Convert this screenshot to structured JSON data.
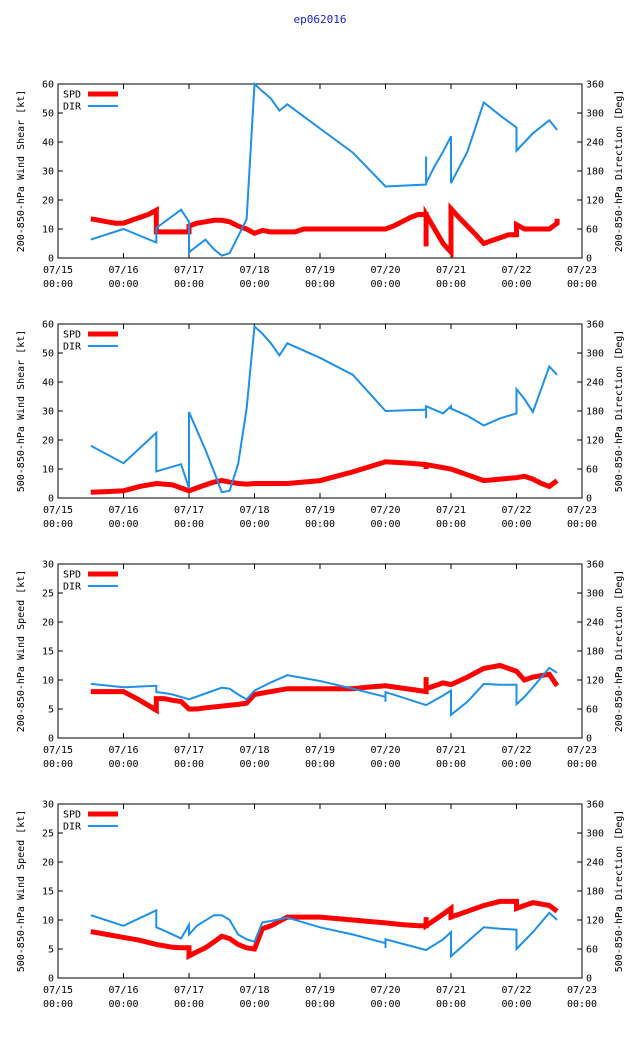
{
  "figure_title": "ep062016",
  "x_tick_labels": [
    {
      "date": "07/15",
      "time": "00:00"
    },
    {
      "date": "07/16",
      "time": "00:00"
    },
    {
      "date": "07/17",
      "time": "00:00"
    },
    {
      "date": "07/18",
      "time": "00:00"
    },
    {
      "date": "07/19",
      "time": "00:00"
    },
    {
      "date": "07/20",
      "time": "00:00"
    },
    {
      "date": "07/21",
      "time": "00:00"
    },
    {
      "date": "07/22",
      "time": "00:00"
    },
    {
      "date": "07/23",
      "time": "00:00"
    }
  ],
  "colors": {
    "spd": "#ff0000",
    "dir": "#1e90e8",
    "title": "#2020c8"
  },
  "chart_data": [
    {
      "type": "line",
      "ylabel": "200-850-hPa Wind Shear [kt]",
      "y2label": "200-850-hPa Direction [Deg]",
      "xlim": [
        0,
        8
      ],
      "ylim": [
        0,
        60
      ],
      "y2lim": [
        0,
        360
      ],
      "yticks": [
        "0",
        "10",
        "20",
        "30",
        "40",
        "50",
        "60"
      ],
      "y2ticks": [
        "0",
        "60",
        "120",
        "180",
        "240",
        "300",
        "360"
      ],
      "legend": [
        "SPD",
        "DIR"
      ],
      "series": [
        {
          "name": "SPD",
          "axis": "left",
          "x": [
            0.5,
            0.63,
            0.75,
            0.88,
            1.0,
            1.12,
            1.25,
            1.38,
            1.5,
            1.5,
            1.62,
            1.75,
            1.88,
            2.0,
            2.0,
            2.12,
            2.25,
            2.38,
            2.5,
            2.62,
            2.75,
            2.88,
            3.0,
            3.12,
            3.25,
            3.38,
            3.5,
            3.62,
            3.75,
            3.88,
            4.0,
            4.5,
            5.0,
            5.12,
            5.25,
            5.38,
            5.5,
            5.62,
            5.62,
            5.62,
            5.75,
            5.88,
            6.0,
            6.0,
            6.12,
            6.25,
            6.38,
            6.5,
            6.62,
            6.75,
            6.88,
            7.0,
            7.0,
            7.12,
            7.25,
            7.38,
            7.5,
            7.62,
            7.62
          ],
          "y": [
            13.5,
            13,
            12.5,
            12,
            12,
            13,
            14,
            15,
            16.5,
            9,
            9,
            9,
            9,
            9,
            11,
            12,
            12.5,
            13,
            13,
            12.5,
            11,
            10,
            8.5,
            9.5,
            9,
            9,
            9,
            9,
            10,
            10,
            10,
            10,
            10,
            11,
            12.5,
            14,
            15,
            15,
            4,
            15,
            10,
            5,
            2,
            17,
            14,
            11,
            8,
            5,
            6,
            7,
            8,
            8,
            11.5,
            10,
            10,
            10,
            10,
            12,
            13.5
          ]
        },
        {
          "name": "DIR",
          "axis": "right",
          "x": [
            0.5,
            1.0,
            1.5,
            1.5,
            1.88,
            2.0,
            2.0,
            2.0,
            2.25,
            2.38,
            2.5,
            2.62,
            2.75,
            2.88,
            3.0,
            3.12,
            3.25,
            3.38,
            3.5,
            4.0,
            4.5,
            5.0,
            5.62,
            5.62,
            5.62,
            5.75,
            5.88,
            6.0,
            6.0,
            6.25,
            6.5,
            6.75,
            7.0,
            7.0,
            7.25,
            7.5,
            7.62
          ],
          "y": [
            38,
            60,
            32,
            62,
            100,
            75,
            75,
            12,
            38,
            18,
            5,
            10,
            45,
            80,
            360,
            345,
            330,
            305,
            318,
            268,
            218,
            148,
            152,
            210,
            155,
            190,
            220,
            252,
            155,
            220,
            322,
            295,
            270,
            222,
            258,
            285,
            265
          ]
        }
      ]
    },
    {
      "type": "line",
      "ylabel": "500-850-hPa Wind Shear [kt]",
      "y2label": "500-850-hPa Direction [Deg]",
      "xlim": [
        0,
        8
      ],
      "ylim": [
        0,
        60
      ],
      "y2lim": [
        0,
        360
      ],
      "yticks": [
        "0",
        "10",
        "20",
        "30",
        "40",
        "50",
        "60"
      ],
      "y2ticks": [
        "0",
        "60",
        "120",
        "180",
        "240",
        "300",
        "360"
      ],
      "legend": [
        "SPD",
        "DIR"
      ],
      "series": [
        {
          "name": "SPD",
          "axis": "left",
          "x": [
            0.5,
            0.75,
            1.0,
            1.25,
            1.5,
            1.75,
            2.0,
            2.12,
            2.25,
            2.38,
            2.5,
            2.62,
            2.75,
            2.88,
            3.0,
            3.5,
            4.0,
            4.5,
            5.0,
            5.12,
            5.38,
            5.62,
            5.62,
            5.62,
            6.0,
            6.25,
            6.5,
            6.75,
            7.0,
            7.12,
            7.25,
            7.38,
            7.5,
            7.62
          ],
          "y": [
            2,
            2.2,
            2.5,
            4,
            5,
            4.5,
            2.5,
            3.5,
            4.5,
            5.5,
            6,
            5.5,
            5,
            4.8,
            5,
            5,
            6,
            9,
            12.5,
            12.3,
            12,
            11.5,
            10,
            11.5,
            10,
            8,
            6,
            6.5,
            7,
            7.5,
            6.5,
            5,
            4,
            6
          ]
        },
        {
          "name": "DIR",
          "axis": "right",
          "x": [
            0.5,
            1.0,
            1.5,
            1.5,
            1.88,
            2.0,
            2.0,
            2.12,
            2.25,
            2.38,
            2.5,
            2.62,
            2.75,
            2.88,
            3.0,
            3.12,
            3.25,
            3.38,
            3.5,
            4.0,
            4.5,
            5.0,
            5.62,
            5.62,
            5.62,
            5.88,
            6.0,
            6.0,
            6.25,
            6.5,
            6.75,
            7.0,
            7.0,
            7.12,
            7.25,
            7.5,
            7.62
          ],
          "y": [
            108,
            72,
            135,
            55,
            70,
            20,
            178,
            140,
            100,
            55,
            12,
            15,
            70,
            185,
            355,
            340,
            320,
            295,
            320,
            290,
            255,
            180,
            183,
            165,
            190,
            175,
            190,
            185,
            170,
            150,
            165,
            175,
            225,
            205,
            178,
            272,
            255
          ]
        }
      ]
    },
    {
      "type": "line",
      "ylabel": "200-850-hPa Wind Speed [kt]",
      "y2label": "200-850-hPa Direction [Deg]",
      "xlim": [
        0,
        8
      ],
      "ylim": [
        0,
        30
      ],
      "y2lim": [
        0,
        360
      ],
      "yticks": [
        "0",
        "5",
        "10",
        "15",
        "20",
        "25",
        "30"
      ],
      "y2ticks": [
        "0",
        "60",
        "120",
        "180",
        "240",
        "300",
        "360"
      ],
      "legend": [
        "SPD",
        "DIR"
      ],
      "series": [
        {
          "name": "SPD",
          "axis": "left",
          "x": [
            0.5,
            0.75,
            1.0,
            1.25,
            1.5,
            1.5,
            1.62,
            1.75,
            1.88,
            2.0,
            2.12,
            2.25,
            2.5,
            2.75,
            2.88,
            3.0,
            3.25,
            3.5,
            4.0,
            4.5,
            4.75,
            5.0,
            5.25,
            5.5,
            5.62,
            5.62,
            5.62,
            5.88,
            6.0,
            6.25,
            6.5,
            6.75,
            7.0,
            7.0,
            7.12,
            7.25,
            7.5,
            7.62
          ],
          "y": [
            8,
            8,
            8,
            6.5,
            4.8,
            6.8,
            6.8,
            6.5,
            6.3,
            5,
            5,
            5.2,
            5.5,
            5.8,
            6,
            7.5,
            8,
            8.5,
            8.5,
            8.5,
            8.8,
            9,
            8.6,
            8.2,
            8,
            10.5,
            8.5,
            9.5,
            9.2,
            10.5,
            12,
            12.5,
            11.5,
            11.5,
            10,
            10.5,
            11,
            9
          ]
        },
        {
          "name": "DIR",
          "axis": "right",
          "x": [
            0.5,
            1.0,
            1.5,
            1.5,
            1.62,
            1.75,
            2.0,
            2.25,
            2.5,
            2.62,
            2.75,
            2.88,
            3.0,
            3.25,
            3.5,
            4.0,
            4.5,
            5.0,
            5.0,
            5.0,
            5.62,
            5.88,
            6.0,
            6.0,
            6.25,
            6.5,
            6.75,
            7.0,
            7.0,
            7.12,
            7.25,
            7.5,
            7.62
          ],
          "y": [
            112,
            105,
            108,
            95,
            93,
            90,
            80,
            92,
            104,
            102,
            90,
            80,
            98,
            115,
            130,
            118,
            102,
            85,
            75,
            95,
            68,
            88,
            98,
            48,
            75,
            112,
            110,
            110,
            70,
            85,
            105,
            145,
            135
          ]
        }
      ]
    },
    {
      "type": "line",
      "ylabel": "500-850-hPa Wind Speed [kt]",
      "y2label": "500-850-hPa Direction [Deg]",
      "xlim": [
        0,
        8
      ],
      "ylim": [
        0,
        30
      ],
      "y2lim": [
        0,
        360
      ],
      "yticks": [
        "0",
        "5",
        "10",
        "15",
        "20",
        "25",
        "30"
      ],
      "y2ticks": [
        "0",
        "60",
        "120",
        "180",
        "240",
        "300",
        "360"
      ],
      "legend": [
        "SPD",
        "DIR"
      ],
      "series": [
        {
          "name": "SPD",
          "axis": "left",
          "x": [
            0.5,
            0.75,
            1.0,
            1.25,
            1.5,
            1.75,
            1.88,
            2.0,
            2.0,
            2.12,
            2.25,
            2.38,
            2.5,
            2.62,
            2.75,
            2.88,
            3.0,
            3.12,
            3.25,
            3.5,
            4.0,
            4.5,
            5.0,
            5.25,
            5.5,
            5.62,
            5.62,
            5.62,
            5.88,
            6.0,
            6.0,
            6.25,
            6.5,
            6.75,
            7.0,
            7.0,
            7.12,
            7.25,
            7.5,
            7.62
          ],
          "y": [
            8,
            7.5,
            7,
            6.5,
            5.8,
            5.3,
            5.2,
            5.2,
            3.8,
            4.5,
            5.2,
            6.2,
            7.2,
            6.8,
            5.8,
            5.2,
            5,
            8.5,
            9,
            10.5,
            10.5,
            10,
            9.5,
            9.2,
            9,
            9,
            10.5,
            9,
            11,
            12,
            10.5,
            11.5,
            12.5,
            13.2,
            13.2,
            12,
            12.5,
            13,
            12.5,
            11.5
          ]
        },
        {
          "name": "DIR",
          "axis": "right",
          "x": [
            0.5,
            1.0,
            1.5,
            1.5,
            1.62,
            1.88,
            2.0,
            2.0,
            2.12,
            2.38,
            2.5,
            2.62,
            2.75,
            2.88,
            3.0,
            3.12,
            3.25,
            3.5,
            4.0,
            4.5,
            5.0,
            5.0,
            5.0,
            5.62,
            5.88,
            6.0,
            6.0,
            6.25,
            6.5,
            6.75,
            7.0,
            7.0,
            7.25,
            7.5,
            7.62
          ],
          "y": [
            130,
            108,
            140,
            105,
            98,
            82,
            110,
            90,
            108,
            130,
            130,
            120,
            90,
            80,
            75,
            115,
            118,
            125,
            105,
            90,
            72,
            62,
            80,
            58,
            80,
            95,
            45,
            75,
            105,
            102,
            100,
            60,
            95,
            135,
            120
          ]
        }
      ]
    }
  ]
}
